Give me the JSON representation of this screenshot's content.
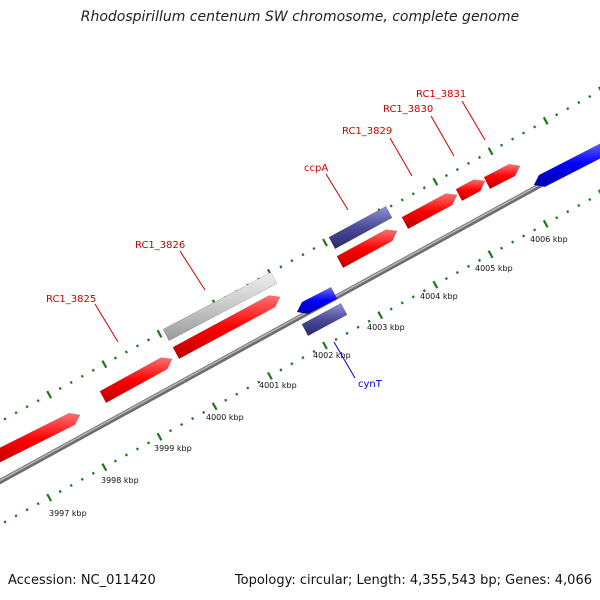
{
  "title": "Rhodospirillum centenum SW chromosome, complete genome",
  "footer": {
    "accession": "Accession: NC_011420",
    "summary": "Topology: circular; Length: 4,355,543 bp; Genes: 4,066"
  },
  "colors": {
    "forward_gene": "#ff0000",
    "reverse_gene": "#0000ff",
    "dark_gene": "#4b4b9a",
    "grey_gene": "#c8c8c8",
    "backbone": "#909090",
    "tick": "#1a7a1a",
    "label_forward": "#cc0000",
    "label_reverse": "#0000cc"
  },
  "scale_labels": [
    "3997 kbp",
    "3998 kbp",
    "3999 kbp",
    "4000 kbp",
    "4001 kbp",
    "4002 kbp",
    "4003 kbp",
    "4004 kbp",
    "4005 kbp",
    "4006 kbp"
  ],
  "gene_labels": [
    {
      "text": "RC1_3825",
      "strand": "forward"
    },
    {
      "text": "RC1_3826",
      "strand": "forward"
    },
    {
      "text": "ccpA",
      "strand": "forward"
    },
    {
      "text": "RC1_3829",
      "strand": "forward"
    },
    {
      "text": "RC1_3830",
      "strand": "forward"
    },
    {
      "text": "RC1_3831",
      "strand": "forward"
    },
    {
      "text": "cynT",
      "strand": "reverse"
    }
  ]
}
